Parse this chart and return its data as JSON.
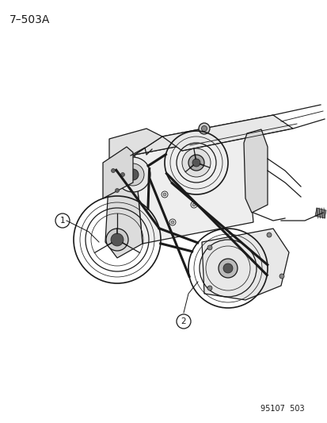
{
  "title": "7–503A",
  "footer": "95107  503",
  "background_color": "#ffffff",
  "label1": "1",
  "label2": "2",
  "fig_width": 4.14,
  "fig_height": 5.33,
  "dpi": 100,
  "line_color": "#1a1a1a",
  "fill_light": "#f0f0f0",
  "fill_mid": "#e0e0e0",
  "fill_dark": "#c8c8c8"
}
